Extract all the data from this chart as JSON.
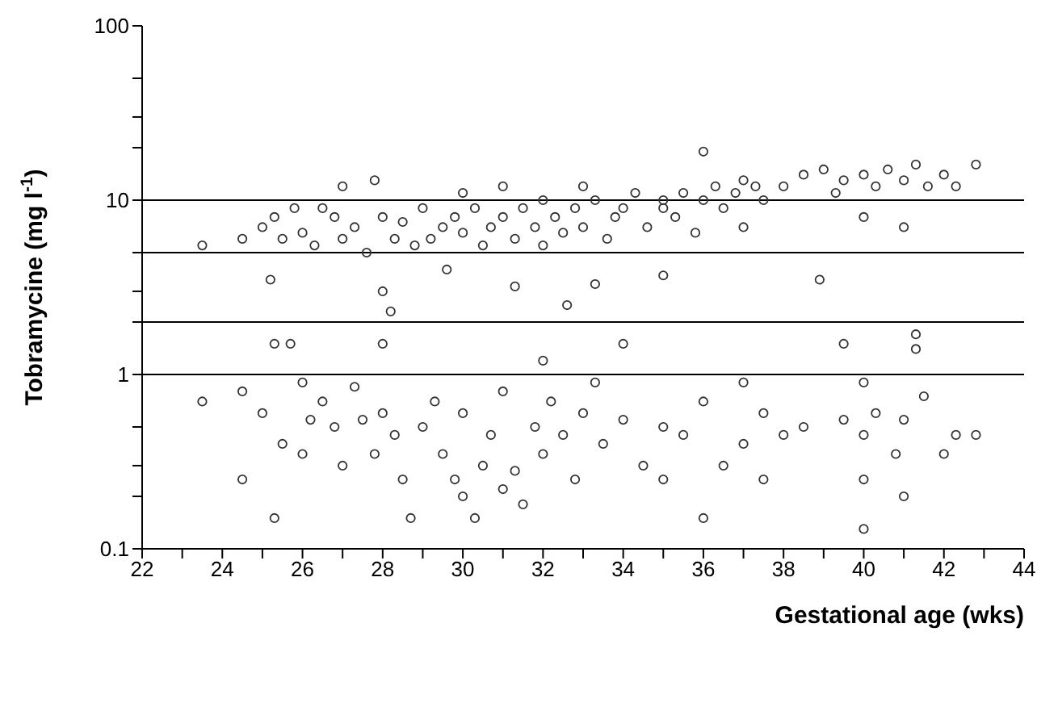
{
  "chart_data": {
    "type": "scatter",
    "xlabel": "Gestational age (wks)",
    "ylabel": "Tobramycine (mg l$^{-1}$)",
    "log": "y",
    "grid": false,
    "legend": false,
    "marker": "circle",
    "xlim": [
      22,
      44
    ],
    "xticks": [
      22,
      {
        "value": 23,
        "label": null
      },
      24,
      {
        "value": 25,
        "label": null
      },
      26,
      {
        "value": 27,
        "label": null
      },
      28,
      {
        "value": 29,
        "label": null
      },
      30,
      {
        "value": 31,
        "label": null
      },
      32,
      {
        "value": 33,
        "label": null
      },
      34,
      {
        "value": 35,
        "label": null
      },
      36,
      {
        "value": 37,
        "label": null
      },
      38,
      {
        "value": 39,
        "label": null
      },
      40,
      {
        "value": 41,
        "label": null
      },
      42,
      {
        "value": 43,
        "label": null
      },
      44
    ],
    "ylim": [
      0.1,
      100
    ],
    "yticks": [
      0.1,
      {
        "value": 0.2,
        "label": null
      },
      {
        "value": 0.3,
        "label": null
      },
      {
        "value": 0.5,
        "label": null
      },
      1,
      {
        "value": 2,
        "label": null
      },
      {
        "value": 3,
        "label": null
      },
      {
        "value": 5,
        "label": null
      },
      10,
      {
        "value": 20,
        "label": null
      },
      {
        "value": 30,
        "label": null
      },
      {
        "value": 50,
        "label": null
      },
      100
    ],
    "ref_lines": [
      {
        "axis": "y",
        "value": 10,
        "color": "#000000"
      },
      {
        "axis": "y",
        "value": 5,
        "color": "#000000"
      },
      {
        "axis": "y",
        "value": 2,
        "color": "#000000"
      },
      {
        "axis": "y",
        "value": 1,
        "color": "#000000"
      }
    ],
    "series": [
      {
        "color": "#333333",
        "x": [
          23.5,
          24.5,
          25,
          25.3,
          25.5,
          25.8,
          26,
          26.3,
          26.5,
          26.8,
          27,
          27,
          27.3,
          27.6,
          27.8,
          28,
          28.3,
          28.5,
          28.8,
          29,
          29.2,
          29.5,
          29.6,
          29.8,
          30,
          30,
          30.3,
          30.5,
          30.7,
          31,
          31,
          31.3,
          31.5,
          31.8,
          32,
          32,
          32.3,
          32.5,
          32.8,
          33,
          33,
          33.3,
          33.6,
          33.8,
          34,
          34.3,
          34.6,
          35,
          35,
          35.3,
          35.5,
          35.8,
          36,
          36,
          36.3,
          36.5,
          36.8,
          37,
          37,
          37.3,
          37.5,
          38,
          38.5,
          39,
          39.3,
          39.5,
          40,
          40,
          40.3,
          40.6,
          41,
          41,
          41.3,
          41.6,
          42,
          42.3,
          42.8,
          25.2,
          28,
          28.2,
          31.3,
          33.3,
          35,
          32.6,
          38.9
        ],
        "values": [
          5.5,
          6,
          7,
          8,
          6,
          9,
          6.5,
          5.5,
          9,
          8,
          6,
          12,
          7,
          5,
          13,
          8,
          6,
          7.5,
          5.5,
          9,
          6,
          7,
          4,
          8,
          6.5,
          11,
          9,
          5.5,
          7,
          8,
          12,
          6,
          9,
          7,
          5.5,
          10,
          8,
          6.5,
          9,
          7,
          12,
          10,
          6,
          8,
          9,
          11,
          7,
          10,
          9,
          8,
          11,
          6.5,
          10,
          19,
          12,
          9,
          11,
          13,
          7,
          12,
          10,
          12,
          14,
          15,
          11,
          13,
          14,
          8,
          12,
          15,
          13,
          7,
          16,
          12,
          14,
          12,
          16,
          3.5,
          3,
          2.3,
          3.2,
          3.3,
          3.7,
          2.5,
          3.5
        ]
      },
      {
        "color": "#333333",
        "x": [
          23.5,
          24.5,
          24.5,
          25,
          25.3,
          25.3,
          25.5,
          25.7,
          26,
          26,
          26.2,
          26.5,
          26.8,
          27,
          27.3,
          27.5,
          27.8,
          28,
          28,
          28.3,
          28.5,
          28.7,
          29,
          29.3,
          29.5,
          29.8,
          30,
          30,
          30.3,
          30.5,
          30.7,
          31,
          31,
          31.3,
          31.5,
          31.8,
          32,
          32,
          32.2,
          32.5,
          32.8,
          33,
          33.3,
          33.5,
          34,
          34,
          34.5,
          35,
          35,
          35.5,
          36,
          36,
          36.5,
          37,
          37,
          37.5,
          37.5,
          38,
          38.5,
          39.5,
          40,
          40,
          40,
          40,
          40.3,
          40.8,
          41,
          41,
          41.3,
          41.5,
          42,
          42.3,
          42.8,
          39.5,
          41.3
        ],
        "values": [
          0.7,
          0.8,
          0.25,
          0.6,
          1.5,
          0.15,
          0.4,
          1.5,
          0.9,
          0.35,
          0.55,
          0.7,
          0.5,
          0.3,
          0.85,
          0.55,
          0.35,
          1.5,
          0.6,
          0.45,
          0.25,
          0.15,
          0.5,
          0.7,
          0.35,
          0.25,
          0.2,
          0.6,
          0.15,
          0.3,
          0.45,
          0.22,
          0.8,
          0.28,
          0.18,
          0.5,
          1.2,
          0.35,
          0.7,
          0.45,
          0.25,
          0.6,
          0.9,
          0.4,
          0.55,
          1.5,
          0.3,
          0.5,
          0.25,
          0.45,
          0.7,
          0.15,
          0.3,
          0.9,
          0.4,
          0.6,
          0.25,
          0.45,
          0.5,
          0.55,
          0.9,
          0.45,
          0.25,
          0.13,
          0.6,
          0.35,
          0.55,
          0.2,
          1.4,
          0.75,
          0.35,
          0.45,
          0.45,
          1.5,
          1.7
        ]
      }
    ]
  }
}
